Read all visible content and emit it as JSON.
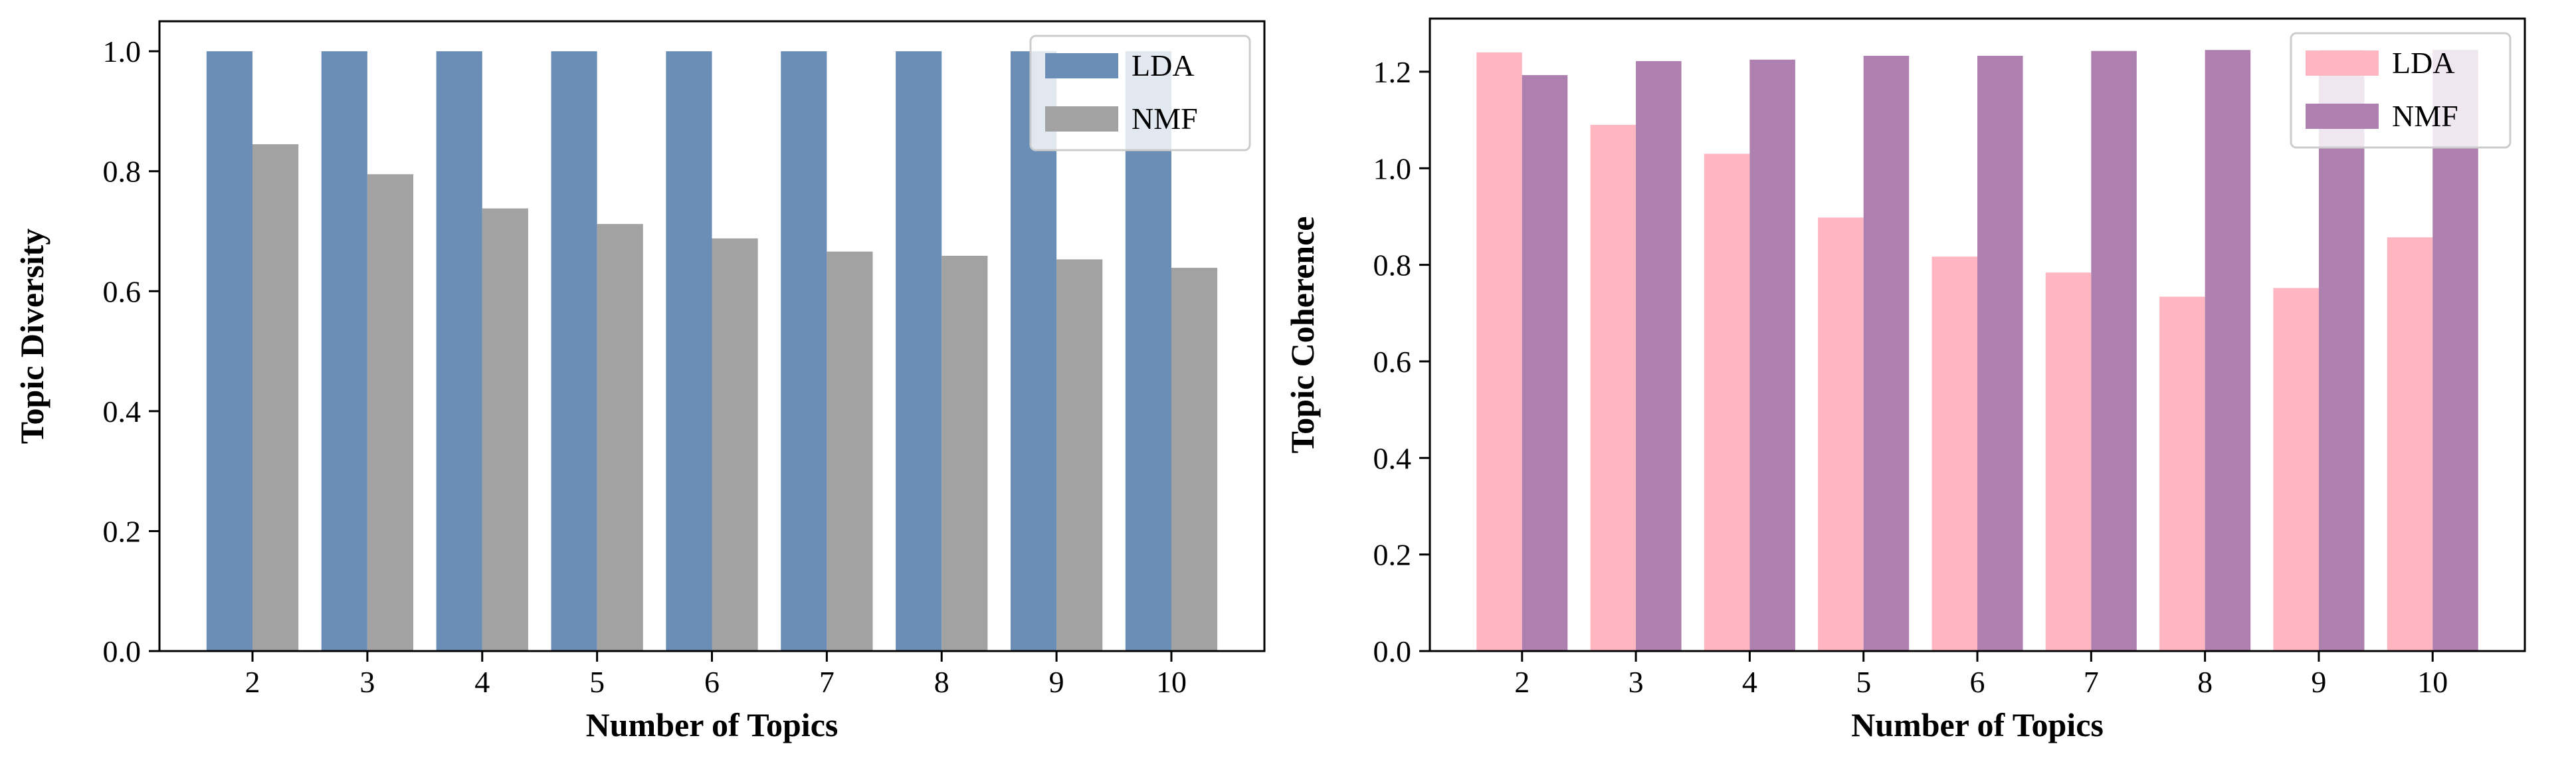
{
  "chart_data": [
    {
      "type": "bar",
      "categories": [
        "2",
        "3",
        "4",
        "5",
        "6",
        "7",
        "8",
        "9",
        "10"
      ],
      "series": [
        {
          "name": "LDA",
          "color": "#6a8eb6",
          "values": [
            1.0,
            1.0,
            1.0,
            1.0,
            1.0,
            1.0,
            1.0,
            1.0,
            1.0
          ]
        },
        {
          "name": "NMF",
          "color": "#a2a2a2",
          "values": [
            0.845,
            0.795,
            0.738,
            0.712,
            0.688,
            0.666,
            0.659,
            0.653,
            0.639
          ]
        }
      ],
      "xlabel": "Number of Topics",
      "ylabel": "Topic Diversity",
      "ylim": [
        0,
        1.05
      ],
      "yticks": [
        0.0,
        0.2,
        0.4,
        0.6,
        0.8,
        1.0
      ],
      "ytick_labels": [
        "0.0",
        "0.2",
        "0.4",
        "0.6",
        "0.8",
        "1.0"
      ],
      "legend_position": "top-right"
    },
    {
      "type": "bar",
      "categories": [
        "2",
        "3",
        "4",
        "5",
        "6",
        "7",
        "8",
        "9",
        "10"
      ],
      "series": [
        {
          "name": "LDA",
          "color": "#ffb6c1",
          "values": [
            1.24,
            1.09,
            1.03,
            0.898,
            0.817,
            0.784,
            0.734,
            0.752,
            0.857
          ]
        },
        {
          "name": "NMF",
          "color": "#ae80b0",
          "values": [
            1.193,
            1.222,
            1.225,
            1.233,
            1.233,
            1.243,
            1.245,
            1.245,
            1.245
          ]
        }
      ],
      "xlabel": "Number of Topics",
      "ylabel": "Topic Coherence",
      "ylim": [
        0,
        1.31
      ],
      "yticks": [
        0.0,
        0.2,
        0.4,
        0.6,
        0.8,
        1.0,
        1.2
      ],
      "ytick_labels": [
        "0.0",
        "0.2",
        "0.4",
        "0.6",
        "0.8",
        "1.0",
        "1.2"
      ],
      "legend_position": "top-right"
    }
  ]
}
